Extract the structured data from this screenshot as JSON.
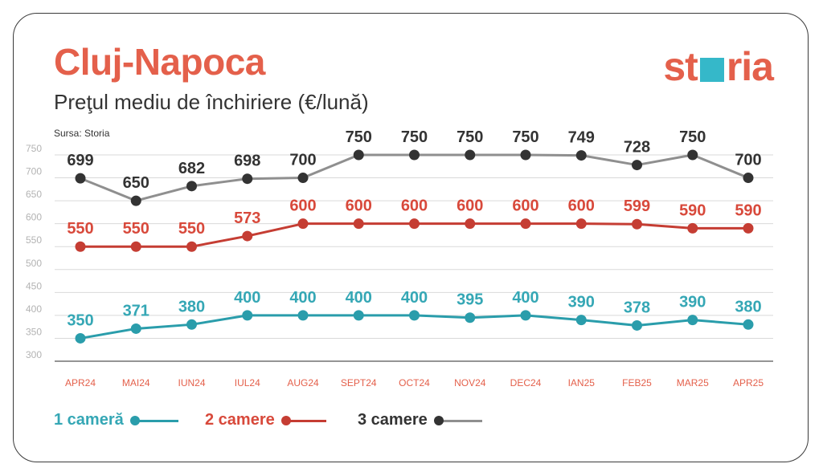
{
  "header": {
    "title": "Cluj-Napoca",
    "subtitle": "Preţul mediu de închiriere (€/lună)",
    "source": "Sursa: Storia",
    "logo_part1": "st",
    "logo_part2": "ria"
  },
  "colors": {
    "accent": "#e4604b",
    "logo_square": "#35b8c9"
  },
  "chart_data": {
    "type": "line",
    "categories": [
      "APR24",
      "MAI24",
      "IUN24",
      "IUL24",
      "AUG24",
      "SEPT24",
      "OCT24",
      "NOV24",
      "DEC24",
      "IAN25",
      "FEB25",
      "MAR25",
      "APR25"
    ],
    "ylim": [
      300,
      750
    ],
    "yticks": [
      300,
      350,
      400,
      450,
      500,
      550,
      600,
      650,
      700,
      750
    ],
    "grid": true,
    "legend_position": "bottom",
    "series": [
      {
        "name": "1 cameră",
        "color": "#2a9dab",
        "label_color": "#35a7b5",
        "values": [
          350,
          371,
          380,
          400,
          400,
          400,
          400,
          395,
          400,
          390,
          378,
          390,
          380
        ]
      },
      {
        "name": "2 camere",
        "color": "#c53d33",
        "label_color": "#d8493b",
        "values": [
          550,
          550,
          550,
          573,
          600,
          600,
          600,
          600,
          600,
          600,
          599,
          590,
          590
        ]
      },
      {
        "name": "3 camere",
        "color": "#333333",
        "line_color": "#8f8f8f",
        "label_color": "#333333",
        "values": [
          699,
          650,
          682,
          698,
          700,
          750,
          750,
          750,
          750,
          749,
          728,
          750,
          700
        ]
      }
    ]
  }
}
